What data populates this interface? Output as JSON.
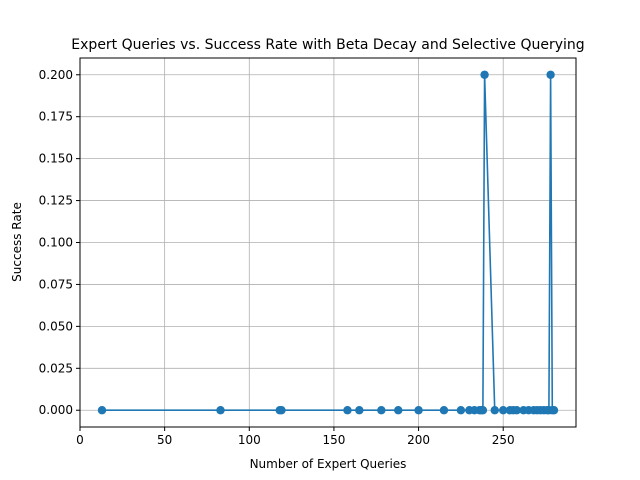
{
  "chart_data": {
    "type": "line",
    "title": "Expert Queries vs. Success Rate with Beta Decay and Selective Querying",
    "xlabel": "Number of Expert Queries",
    "ylabel": "Success Rate",
    "xlim": [
      0,
      293
    ],
    "ylim": [
      -0.01,
      0.21
    ],
    "xticks": [
      0,
      50,
      100,
      150,
      200,
      250
    ],
    "xtick_labels": [
      "0",
      "50",
      "100",
      "150",
      "200",
      "250"
    ],
    "yticks": [
      0.0,
      0.025,
      0.05,
      0.075,
      0.1,
      0.125,
      0.15,
      0.175,
      0.2
    ],
    "ytick_labels": [
      "0.000",
      "0.025",
      "0.050",
      "0.075",
      "0.100",
      "0.125",
      "0.150",
      "0.175",
      "0.200"
    ],
    "grid": true,
    "marker": "circle",
    "color": "#1f77b4",
    "series": [
      {
        "x": [
          13,
          83,
          118,
          119,
          158,
          165,
          178,
          188,
          200,
          215,
          225,
          230,
          233,
          236,
          237,
          238,
          239,
          245,
          250,
          254,
          256,
          258,
          262,
          265,
          268,
          270,
          272,
          274,
          276,
          277,
          278,
          279,
          280
        ],
        "y": [
          0,
          0,
          0,
          0,
          0,
          0,
          0,
          0,
          0,
          0,
          0,
          0,
          0,
          0,
          0,
          0,
          0.2,
          0,
          0,
          0,
          0,
          0,
          0,
          0,
          0,
          0,
          0,
          0,
          0,
          0,
          0.2,
          0,
          0
        ]
      }
    ]
  }
}
